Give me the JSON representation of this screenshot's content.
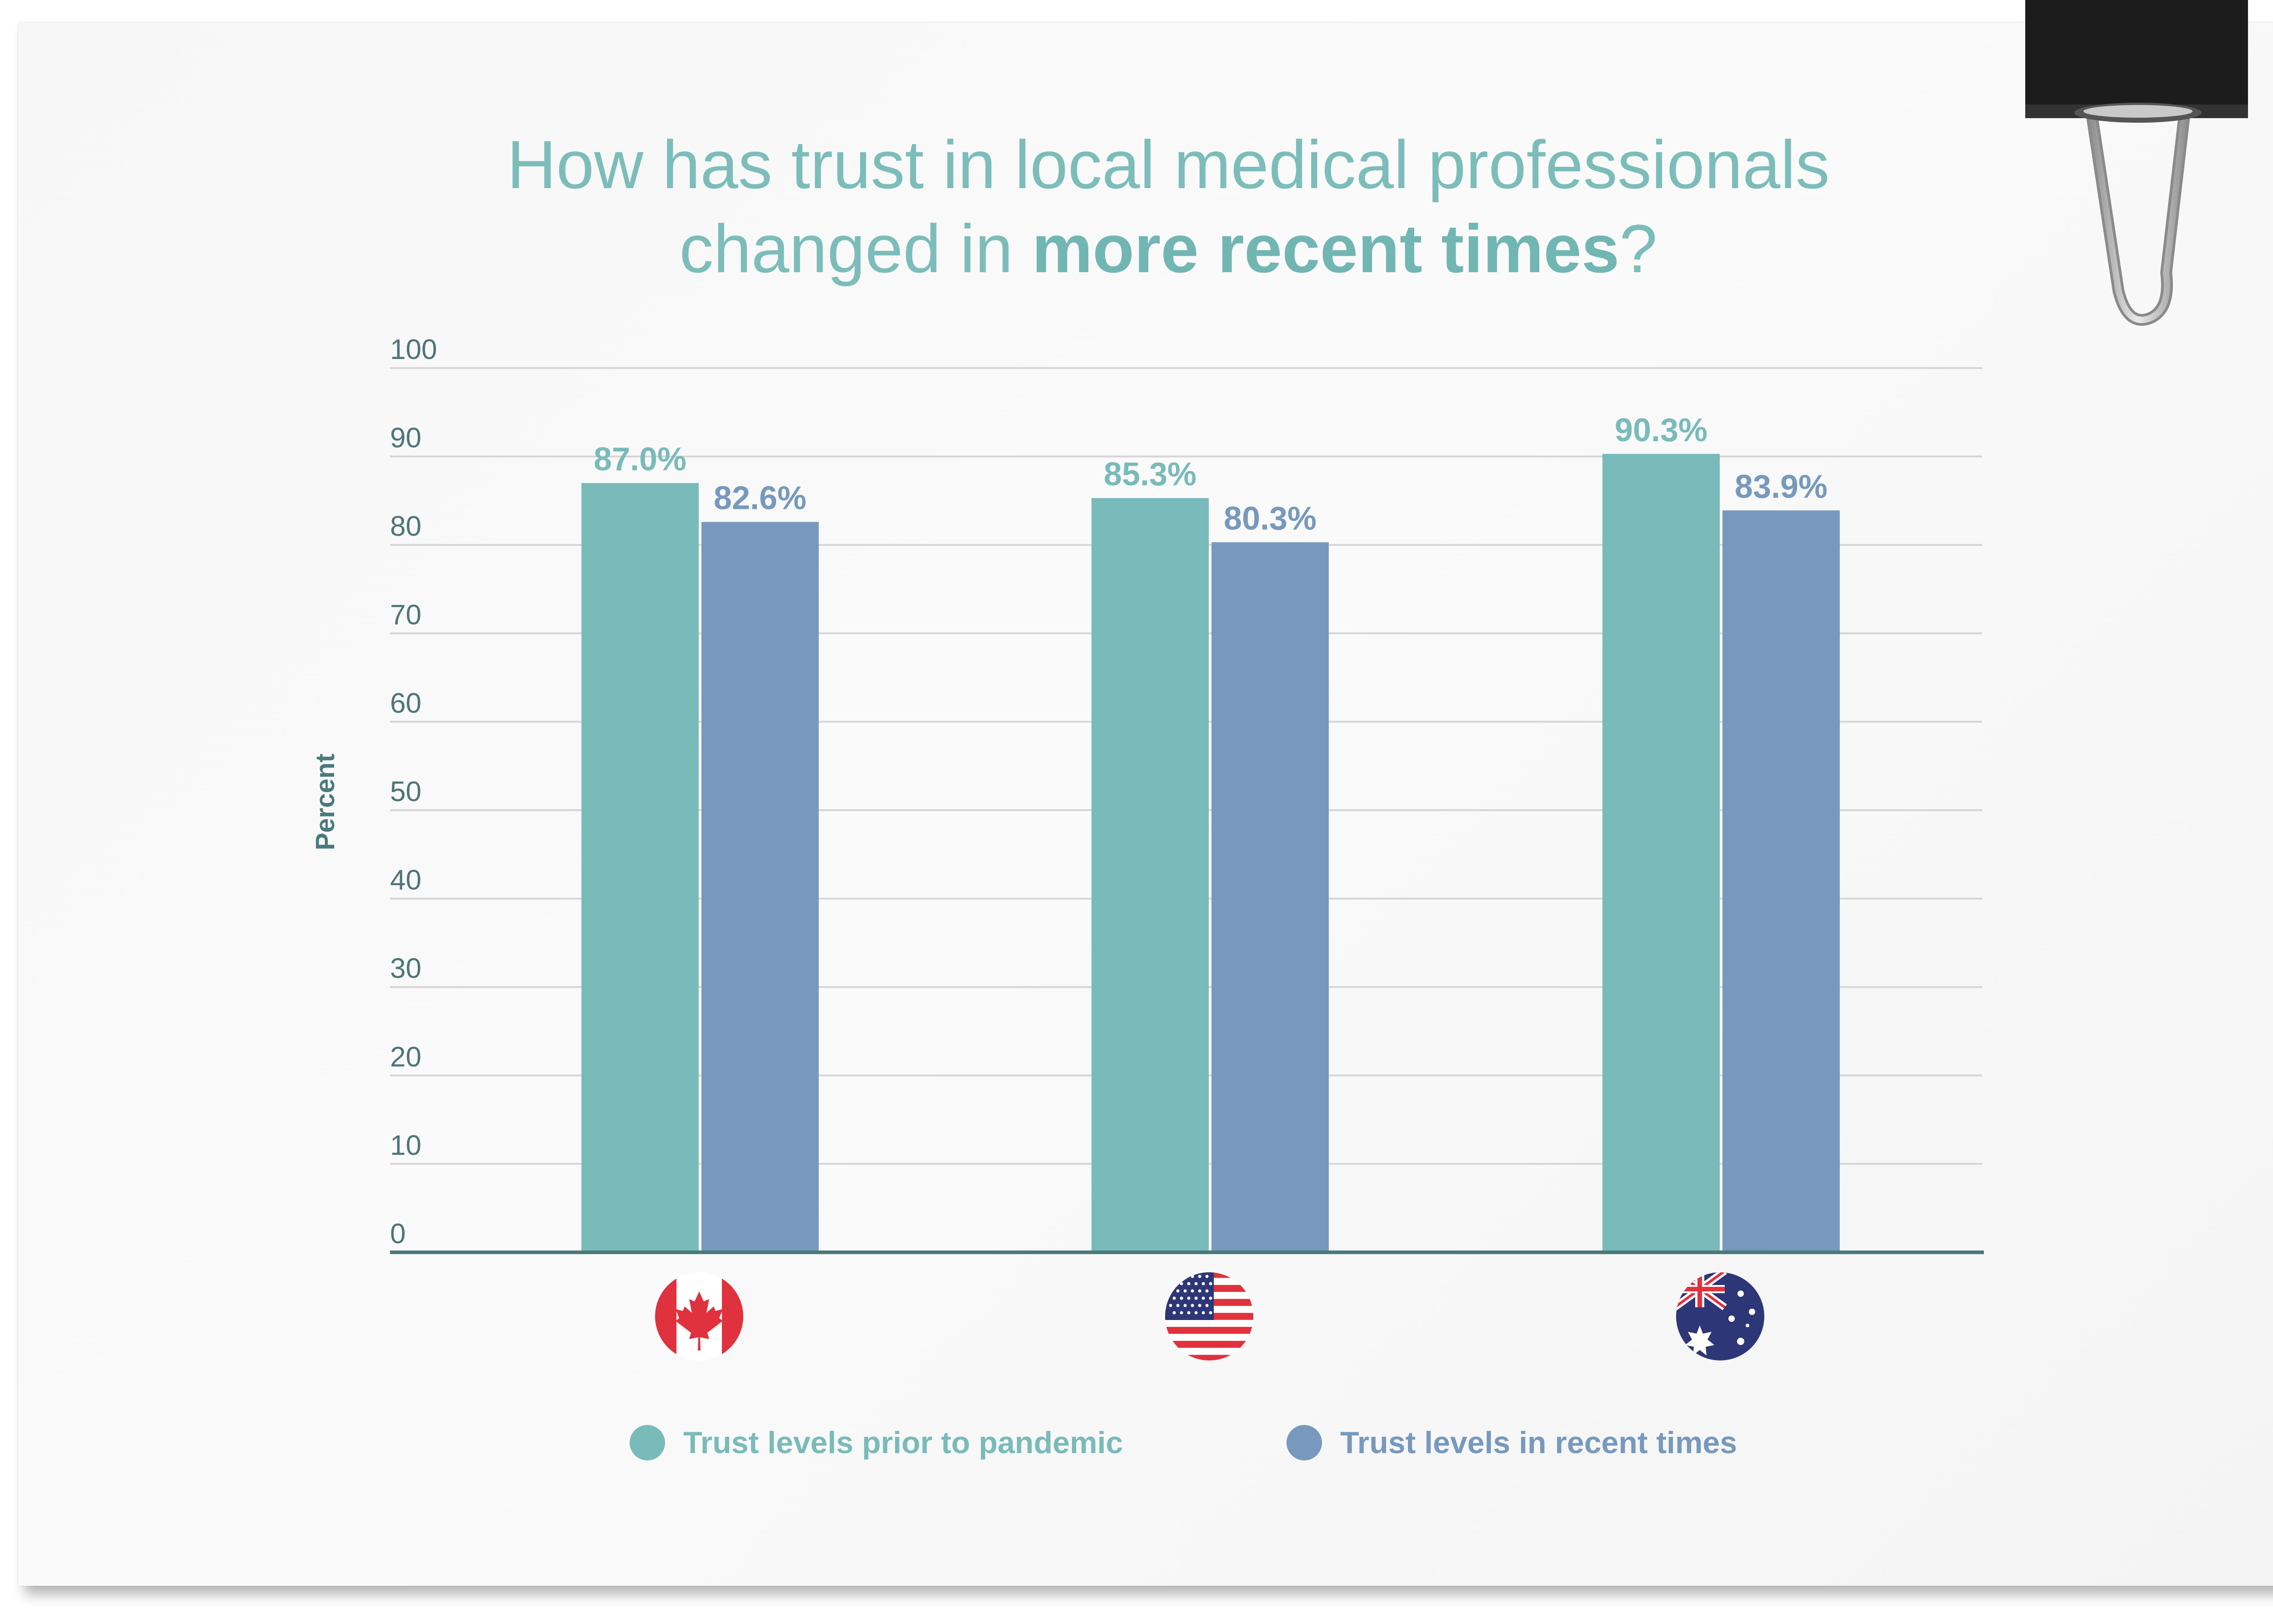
{
  "title": {
    "line1": "How has trust in local medical professionals",
    "line2_pre": "changed in ",
    "line2_bold": "more recent times",
    "line2_post": "?"
  },
  "chart_data": {
    "type": "bar",
    "categories": [
      "Canada",
      "United States",
      "Australia"
    ],
    "category_icons": [
      "canada-flag-icon",
      "usa-flag-icon",
      "australia-flag-icon"
    ],
    "series": [
      {
        "name": "Trust levels prior to pandemic",
        "values": [
          87.0,
          85.3,
          90.3
        ],
        "labels": [
          "87.0%",
          "85.3%",
          "90.3%"
        ],
        "color": "#79bbba"
      },
      {
        "name": "Trust levels in recent times",
        "values": [
          82.6,
          80.3,
          83.9
        ],
        "labels": [
          "82.6%",
          "80.3%",
          "83.9%"
        ],
        "color": "#7799bd"
      }
    ],
    "ylabel": "Percent",
    "ylim": [
      0,
      100
    ],
    "yticks": [
      "0",
      "10",
      "20",
      "30",
      "40",
      "50",
      "60",
      "70",
      "80",
      "90",
      "100"
    ],
    "grid": true,
    "legend_position": "bottom"
  },
  "colors": {
    "title": "#7cbdba",
    "axis": "#4a7a7c",
    "grid": "#d5d5d5",
    "tick_text": "#4e7577"
  }
}
